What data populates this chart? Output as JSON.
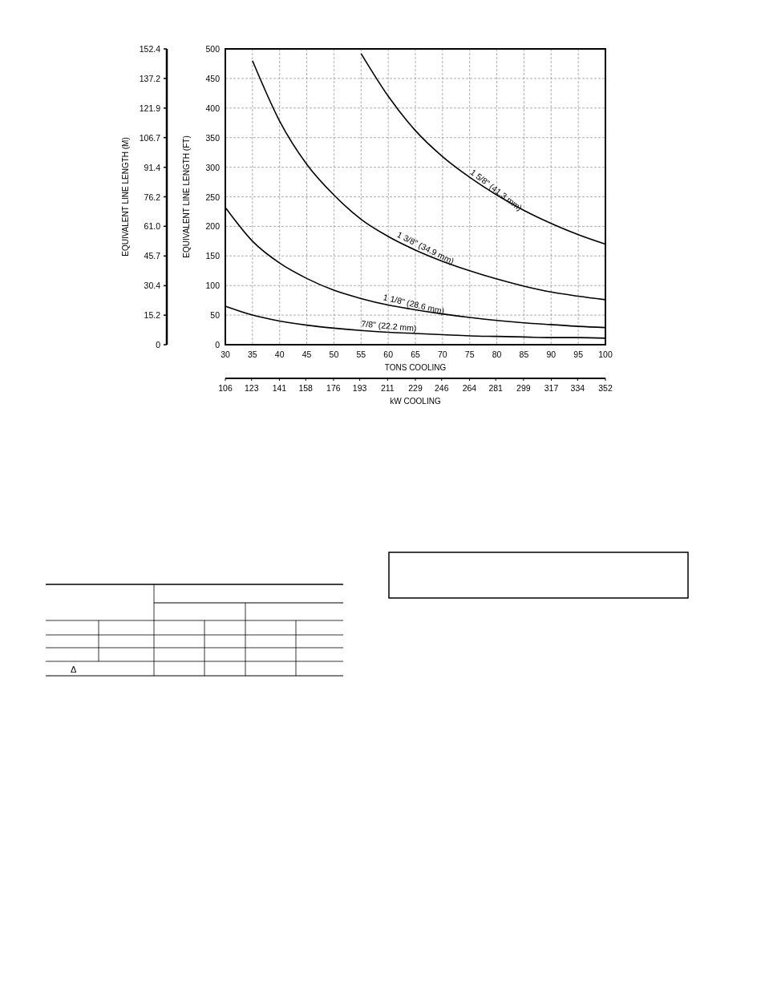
{
  "chart_data": {
    "type": "line",
    "xlabel": "TONS COOLING",
    "x2label": "kW COOLING",
    "ylabel": "EQUIVALENT LINE LENGTH (FT)",
    "y2label": "EQUIVALENT LINE LENGTH (M)",
    "xlim": [
      30,
      100
    ],
    "xticks": [
      30,
      35,
      40,
      45,
      50,
      55,
      60,
      65,
      70,
      75,
      80,
      85,
      90,
      95,
      100
    ],
    "x2lim": [
      106,
      352
    ],
    "x2ticks": [
      106,
      123,
      141,
      158,
      176,
      193,
      211,
      229,
      246,
      264,
      281,
      299,
      317,
      334,
      352
    ],
    "ylim": [
      0,
      500
    ],
    "yticks": [
      0,
      50,
      100,
      150,
      200,
      250,
      300,
      350,
      400,
      450,
      500
    ],
    "y2lim": [
      0,
      152.4
    ],
    "y2ticks": [
      0,
      15.2,
      30.4,
      45.7,
      {
        "value": 61,
        "label": "61.0"
      },
      76.2,
      91.4,
      106.7,
      121.9,
      137.2,
      152.4
    ],
    "grid": true,
    "series": [
      {
        "name": "7/8\" (22.2 mm)",
        "color": "#000000",
        "x": [
          30,
          35,
          40,
          45,
          50,
          55,
          60,
          65,
          70,
          75,
          80,
          85,
          90,
          95,
          100
        ],
        "values": [
          65,
          50,
          40,
          33,
          28,
          24,
          21,
          19,
          17,
          15,
          14,
          13,
          12,
          12,
          11
        ]
      },
      {
        "name": "1 1/8\" (28.6 mm)",
        "color": "#000000",
        "x": [
          30,
          35,
          40,
          45,
          50,
          55,
          60,
          65,
          70,
          75,
          80,
          85,
          90,
          95,
          100
        ],
        "values": [
          232,
          175,
          138,
          112,
          92,
          78,
          67,
          59,
          52,
          46,
          41,
          37,
          34,
          31,
          29
        ]
      },
      {
        "name": "1 3/8\" (34.9 mm)",
        "color": "#000000",
        "x": [
          35,
          40,
          45,
          50,
          55,
          60,
          65,
          70,
          75,
          80,
          85,
          90,
          95,
          100
        ],
        "values": [
          480,
          378,
          305,
          253,
          212,
          183,
          160,
          141,
          125,
          111,
          99,
          89,
          82,
          76
        ]
      },
      {
        "name": "1 5/8\" (41.3 mm)",
        "color": "#000000",
        "x": [
          55,
          60,
          65,
          70,
          75,
          80,
          85,
          90,
          95,
          100
        ],
        "values": [
          492,
          420,
          362,
          318,
          283,
          253,
          227,
          205,
          186,
          170
        ]
      }
    ],
    "annotations": [
      "Δ"
    ]
  }
}
